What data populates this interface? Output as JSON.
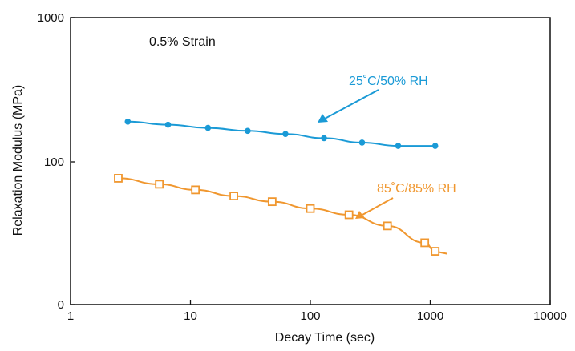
{
  "chart_data": {
    "type": "line",
    "xlabel": "Decay Time (sec)",
    "ylabel": "Relaxation Modulus (MPa)",
    "xscale": "log",
    "xlim": [
      1,
      10000
    ],
    "ylim": [
      "0",
      "1000"
    ],
    "x_ticks": [
      "1",
      "10",
      "100",
      "1000",
      "10000"
    ],
    "y_ticks": [
      "0",
      "100",
      "1000"
    ],
    "grid": false,
    "annotations": {
      "strain": "0.5% Strain",
      "series_1_label": "25˚C/50% RH",
      "series_2_label": "85˚C/85% RH"
    },
    "series": [
      {
        "name": "25˚C/50% RH",
        "color": "#1a9ad6",
        "marker": "filled-circle",
        "points": [
          {
            "x": 3.0,
            "y": 190
          },
          {
            "x": 6.5,
            "y": 181
          },
          {
            "x": 14,
            "y": 172
          },
          {
            "x": 30,
            "y": 164
          },
          {
            "x": 62,
            "y": 156
          },
          {
            "x": 130,
            "y": 146
          },
          {
            "x": 270,
            "y": 136
          },
          {
            "x": 540,
            "y": 129
          },
          {
            "x": 1100,
            "y": 129
          }
        ]
      },
      {
        "name": "85˚C/85% RH",
        "color": "#f0972f",
        "marker": "open-square",
        "points": [
          {
            "x": 2.5,
            "y": 77
          },
          {
            "x": 5.5,
            "y": 70
          },
          {
            "x": 11,
            "y": 64
          },
          {
            "x": 23,
            "y": 58
          },
          {
            "x": 48,
            "y": 53
          },
          {
            "x": 100,
            "y": 47.5
          },
          {
            "x": 210,
            "y": 43
          },
          {
            "x": 440,
            "y": 36
          },
          {
            "x": 900,
            "y": 27.5
          },
          {
            "x": 1100,
            "y": 24
          }
        ]
      }
    ]
  }
}
